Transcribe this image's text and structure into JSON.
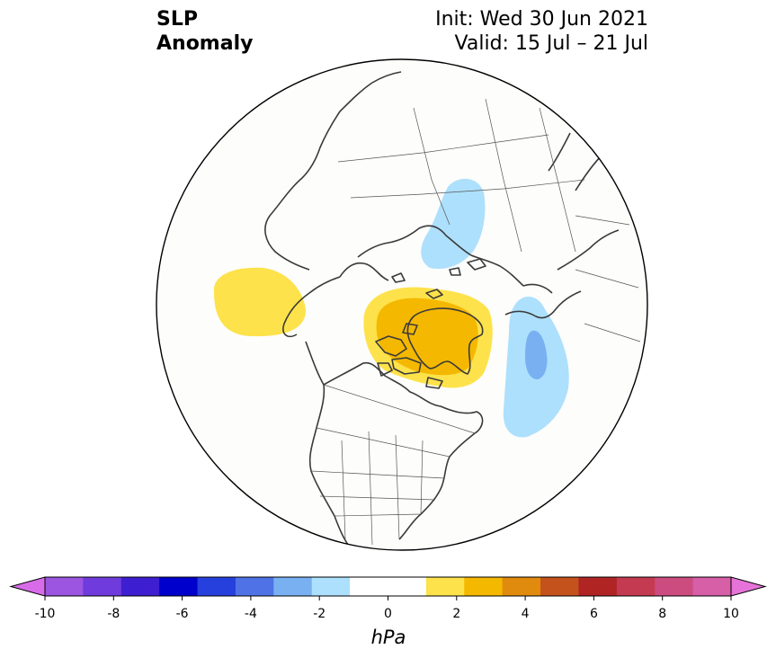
{
  "title": {
    "line1": "SLP",
    "line2": "Anomaly"
  },
  "info": {
    "init": "Init: Wed 30 Jun 2021",
    "valid": "Valid: 15 Jul – 21 Jul"
  },
  "colorbar": {
    "label": "hPa",
    "min": -10,
    "max": 10,
    "step": 1,
    "ticks": [
      "-10",
      "-8",
      "-6",
      "-4",
      "-2",
      "0",
      "2",
      "4",
      "6",
      "8",
      "10"
    ],
    "colors": [
      "#9b55e0",
      "#6f3bdc",
      "#3e1ed1",
      "#0000cc",
      "#2540dc",
      "#4f72e6",
      "#79b0f2",
      "#ade0fc",
      "#ffffff",
      "#ffffff",
      "#fde24b",
      "#f4b800",
      "#e08a0e",
      "#c4521c",
      "#b02424",
      "#c43a50",
      "#cc4c80",
      "#d65fa8"
    ],
    "extend_low_color": "#d86ce8",
    "extend_high_color": "#e673d8"
  },
  "map": {
    "projection": "north polar stereographic",
    "anomalies": [
      {
        "name": "north-pacific-positive",
        "value": "1-2 hPa"
      },
      {
        "name": "greenland-positive",
        "value": "2-3 hPa"
      },
      {
        "name": "europe-negative",
        "value": "-2 to -1 hPa"
      },
      {
        "name": "siberia-negative",
        "value": "-3 to -1 hPa"
      }
    ]
  }
}
